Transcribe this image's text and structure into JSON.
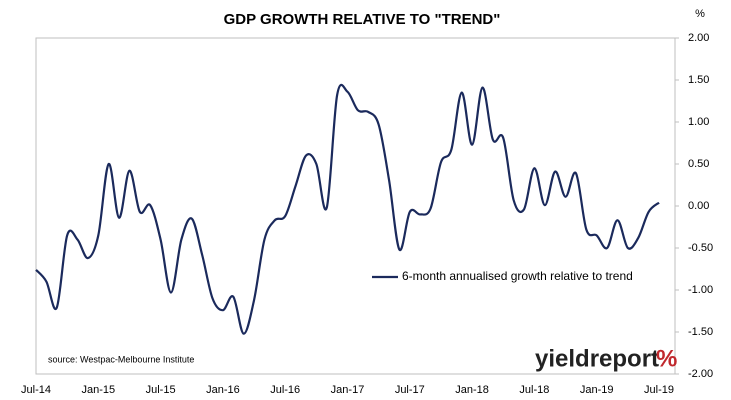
{
  "chart_data": {
    "type": "line",
    "title": "GDP GROWTH RELATIVE TO \"TREND\"",
    "y_unit": "%",
    "source": "source: Westpac-Melbourne Institute",
    "logo": {
      "text": "yieldreport",
      "mark": "%"
    },
    "categories": [
      "Jul-14",
      null,
      null,
      null,
      null,
      null,
      "Jan-15",
      null,
      null,
      null,
      null,
      null,
      "Jul-15",
      null,
      null,
      null,
      null,
      null,
      "Jan-16",
      null,
      null,
      null,
      null,
      null,
      "Jul-16",
      null,
      null,
      null,
      null,
      null,
      "Jan-17",
      null,
      null,
      null,
      null,
      null,
      "Jul-17",
      null,
      null,
      null,
      null,
      null,
      "Jan-18",
      null,
      null,
      null,
      null,
      null,
      "Jul-18",
      null,
      null,
      null,
      null,
      null,
      "Jan-19",
      null,
      null,
      null,
      null,
      null,
      "Jul-19"
    ],
    "series": [
      {
        "name": "6-month annualised growth relative to trend",
        "color": "#1b2a5c",
        "values": [
          -0.76,
          -0.9,
          -1.21,
          -0.35,
          -0.4,
          -0.62,
          -0.35,
          0.5,
          -0.14,
          0.42,
          -0.07,
          0.01,
          -0.4,
          -1.03,
          -0.4,
          -0.15,
          -0.58,
          -1.1,
          -1.24,
          -1.08,
          -1.52,
          -1.12,
          -0.4,
          -0.17,
          -0.12,
          0.24,
          0.6,
          0.5,
          -0.02,
          1.32,
          1.36,
          1.14,
          1.12,
          0.97,
          0.31,
          -0.52,
          -0.07,
          -0.1,
          -0.03,
          0.52,
          0.67,
          1.35,
          0.73,
          1.41,
          0.79,
          0.81,
          0.07,
          -0.04,
          0.45,
          0.01,
          0.41,
          0.11,
          0.39,
          -0.28,
          -0.35,
          -0.5,
          -0.17,
          -0.5,
          -0.38,
          -0.07,
          0.04
        ]
      }
    ],
    "ylim": [
      -2,
      2
    ],
    "yticks": [
      {
        "value": 2,
        "label": "2.00"
      },
      {
        "value": 1.5,
        "label": "1.50"
      },
      {
        "value": 1,
        "label": "1.00"
      },
      {
        "value": 0.5,
        "label": "0.50"
      },
      {
        "value": 0,
        "label": "0.00"
      },
      {
        "value": -0.5,
        "label": "-0.50"
      },
      {
        "value": -1,
        "label": "-1.00"
      },
      {
        "value": -1.5,
        "label": "-1.50"
      },
      {
        "value": -2,
        "label": "-2.00"
      }
    ],
    "grid": false,
    "legend": "lower-right"
  }
}
